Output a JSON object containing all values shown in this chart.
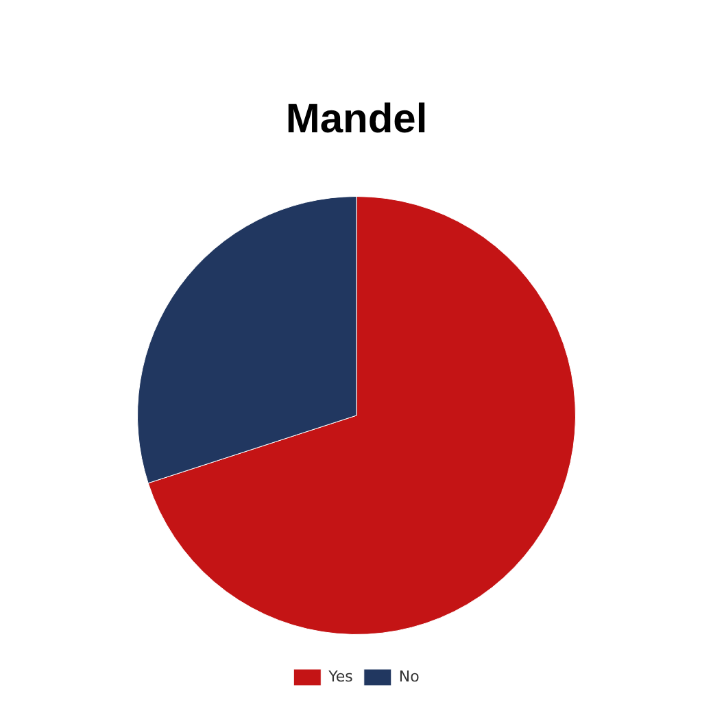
{
  "chart_data": {
    "type": "pie",
    "title": "Mandel",
    "categories": [
      "Yes",
      "No"
    ],
    "values": [
      70,
      30
    ],
    "colors": [
      "#c41415",
      "#213760"
    ],
    "legend": "bottom"
  }
}
